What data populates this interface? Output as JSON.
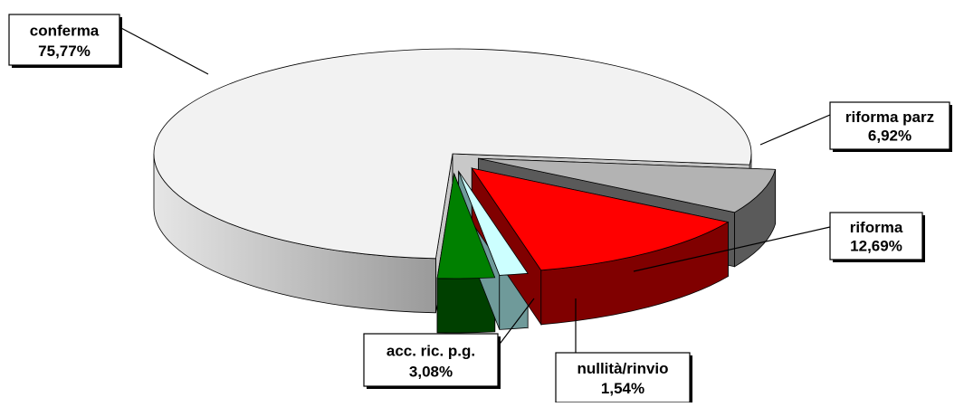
{
  "chart_data": {
    "type": "pie",
    "title": "",
    "three_d": true,
    "start_slice": "conferma",
    "slices": [
      {
        "label": "conferma",
        "value": 75.77,
        "value_text": "75,77%",
        "color": "#f2f2f2",
        "side_color": "#c8c8c8",
        "exploded": false,
        "label_position": "top-left"
      },
      {
        "label": "riforma parz",
        "value": 6.92,
        "value_text": "6,92%",
        "color": "#b3b3b3",
        "side_color": "#5a5a5a",
        "exploded": true,
        "label_position": "right"
      },
      {
        "label": "riforma",
        "value": 12.69,
        "value_text": "12,69%",
        "color": "#ff0000",
        "side_color": "#800000",
        "exploded": true,
        "label_position": "right"
      },
      {
        "label": "nullità/rinvio",
        "value": 1.54,
        "value_text": "1,54%",
        "color": "#ccffff",
        "side_color": "#6f9a9a",
        "exploded": true,
        "label_position": "bottom"
      },
      {
        "label": "acc. ric. p.g.",
        "value": 3.08,
        "value_text": "3,08%",
        "color": "#008000",
        "side_color": "#004000",
        "exploded": true,
        "label_position": "bottom-left"
      }
    ],
    "legend": "none"
  }
}
